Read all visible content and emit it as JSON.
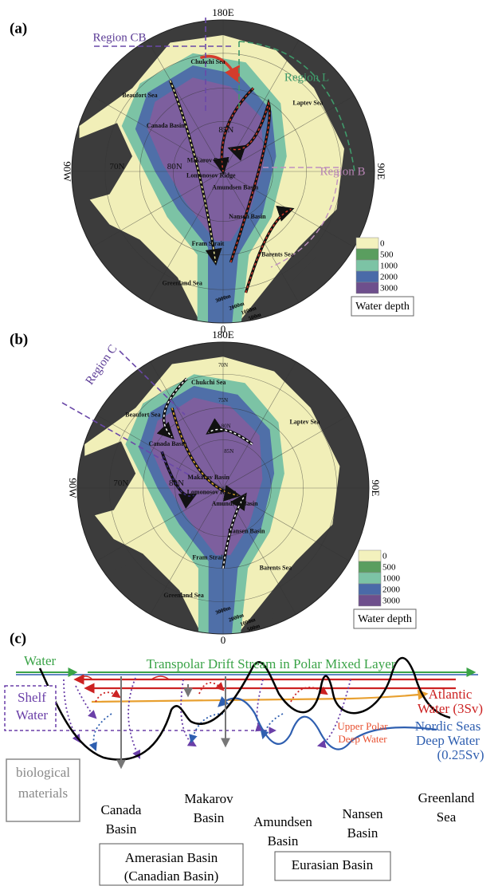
{
  "panels": [
    {
      "label": "(a)",
      "top": "180E",
      "bottom": "0",
      "left": "90W",
      "right": "90E",
      "regions": [
        "Region CB",
        "Region L",
        "Region B"
      ],
      "places": [
        "Chukchi Sea",
        "Beaufort Sea",
        "Canada Basin",
        "Makarov Basin",
        "Lomonosov Ridge",
        "Amundsen Basin",
        "Nansen Basin",
        "Laptev Sea",
        "Barents Sea",
        "Fram Strait",
        "Greenland Sea"
      ],
      "latitudes": [
        "70N",
        "80N",
        "85N"
      ],
      "depth_contours": [
        "3000m",
        "2000m",
        "1000m",
        "500m"
      ],
      "legend": {
        "levels": [
          "0",
          "500",
          "1000",
          "2000",
          "3000"
        ],
        "title": "Water depth"
      }
    },
    {
      "label": "(b)",
      "top": "180E",
      "bottom": "0",
      "left": "90W",
      "right": "90E",
      "regions": [
        "Region C"
      ],
      "places": [
        "Chukchi Sea",
        "Beaufort Sea",
        "Canada Basin",
        "Makarov Basin",
        "Lomonosov Ridge",
        "Amundsen Basin",
        "Nansen Basin",
        "Laptev Sea",
        "Barents Sea",
        "Fram Strait",
        "Greenland Sea"
      ],
      "latitudes": [
        "70N",
        "80N",
        "70N",
        "75N",
        "80N",
        "85N"
      ],
      "depth_contours": [
        "3000m",
        "2000m",
        "1000m",
        "500m"
      ],
      "legend": {
        "levels": [
          "0",
          "500",
          "1000",
          "2000",
          "3000"
        ],
        "title": "Water depth"
      }
    }
  ],
  "schematic": {
    "label": "(c)",
    "surface": "Water",
    "drift": "Transpolar Drift Stream in Polar Mixed Layer",
    "atlantic": [
      "Atlantic",
      "Water (3Sv)"
    ],
    "shelf": [
      "Shelf",
      "Water"
    ],
    "upper_polar": [
      "Upper Polar",
      "Deep Water"
    ],
    "nordic": [
      "Nordic Seas",
      "Deep Water",
      "(0.25Sv)"
    ],
    "biological": [
      "biological",
      "materials"
    ],
    "basins": [
      [
        "Canada",
        "Basin"
      ],
      [
        "Makarov",
        "Basin"
      ],
      [
        "Amundsen",
        "Basin"
      ],
      [
        "Nansen",
        "Basin"
      ],
      [
        "Greenland",
        "Sea"
      ]
    ],
    "groups": [
      [
        "Amerasian Basin",
        "(Canadian Basin)"
      ],
      [
        "Eurasian Basin"
      ]
    ]
  }
}
